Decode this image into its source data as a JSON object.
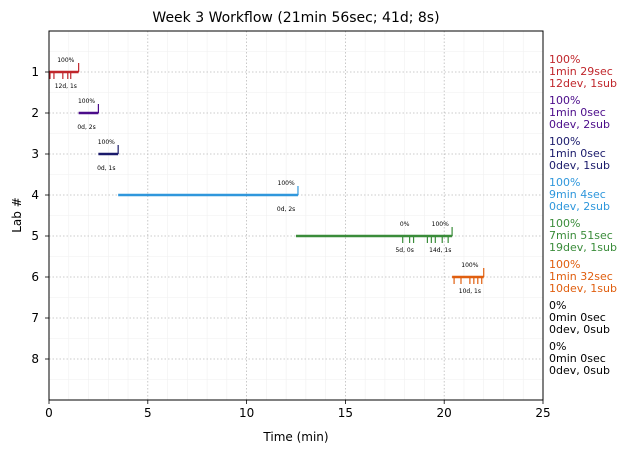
{
  "chart_data": {
    "type": "timeline",
    "title": "Week 3 Workflow (21min 56sec; 41d; 8s)",
    "xlabel": "Time (min)",
    "ylabel": "Lab #",
    "xlim": [
      0,
      25
    ],
    "ylim": [
      0,
      9
    ],
    "x_ticks": [
      "0",
      "5",
      "10",
      "15",
      "20",
      "25"
    ],
    "y_ticks": [
      "1",
      "2",
      "3",
      "4",
      "5",
      "6",
      "7",
      "8"
    ],
    "grid": true,
    "labs": [
      {
        "lab": 1,
        "color": "#c0262b",
        "bar": [
          0,
          1.5
        ],
        "events": [
          0.05,
          0.25,
          0.7,
          0.95,
          1.1
        ],
        "annotations": [
          {
            "x": 0.85,
            "side": "above",
            "text": "100%"
          },
          {
            "x": 0.85,
            "side": "below",
            "text": "12d, 1s"
          }
        ],
        "summary": [
          "100%",
          "1min 29sec",
          "12dev, 1sub"
        ]
      },
      {
        "lab": 2,
        "color": "#4b0c8a",
        "bar": [
          1.5,
          2.5
        ],
        "events": [],
        "annotations": [
          {
            "x": 1.9,
            "side": "above",
            "text": "100%"
          },
          {
            "x": 1.9,
            "side": "below",
            "text": "0d, 2s"
          }
        ],
        "summary": [
          "100%",
          "1min 0sec",
          "0dev, 2sub"
        ]
      },
      {
        "lab": 3,
        "color": "#1a1a6b",
        "bar": [
          2.5,
          3.5
        ],
        "events": [],
        "annotations": [
          {
            "x": 2.9,
            "side": "above",
            "text": "100%"
          },
          {
            "x": 2.9,
            "side": "below",
            "text": "0d, 1s"
          }
        ],
        "summary": [
          "100%",
          "1min 0sec",
          "0dev, 1sub"
        ]
      },
      {
        "lab": 4,
        "color": "#2f97dc",
        "bar": [
          3.5,
          12.6
        ],
        "events": [],
        "annotations": [
          {
            "x": 12.0,
            "side": "above",
            "text": "100%"
          },
          {
            "x": 12.0,
            "side": "below",
            "text": "0d, 2s"
          }
        ],
        "summary": [
          "100%",
          "9min 4sec",
          "0dev, 2sub"
        ]
      },
      {
        "lab": 5,
        "color": "#3a8c3a",
        "bar": [
          12.5,
          20.4
        ],
        "events": [
          17.9,
          18.25,
          18.45,
          19.15,
          19.35,
          19.55,
          19.9,
          20.2
        ],
        "annotations": [
          {
            "x": 18.0,
            "side": "above",
            "text": "0%"
          },
          {
            "x": 18.0,
            "side": "below",
            "text": "5d, 0s"
          },
          {
            "x": 19.8,
            "side": "above",
            "text": "100%"
          },
          {
            "x": 19.8,
            "side": "below",
            "text": "14d, 1s"
          }
        ],
        "summary": [
          "100%",
          "7min 51sec",
          "19dev, 1sub"
        ]
      },
      {
        "lab": 6,
        "color": "#e05e0e",
        "bar": [
          20.4,
          22.0
        ],
        "events": [
          20.5,
          20.85,
          21.3,
          21.5,
          21.7,
          21.9
        ],
        "annotations": [
          {
            "x": 21.3,
            "side": "above",
            "text": "100%"
          },
          {
            "x": 21.3,
            "side": "below",
            "text": "10d, 1s"
          }
        ],
        "summary": [
          "100%",
          "1min 32sec",
          "10dev, 1sub"
        ]
      },
      {
        "lab": 7,
        "color": "#000000",
        "bar": null,
        "events": [],
        "annotations": [],
        "summary": [
          "0%",
          "0min 0sec",
          "0dev, 0sub"
        ]
      },
      {
        "lab": 8,
        "color": "#000000",
        "bar": null,
        "events": [],
        "annotations": [],
        "summary": [
          "0%",
          "0min 0sec",
          "0dev, 0sub"
        ]
      }
    ]
  }
}
